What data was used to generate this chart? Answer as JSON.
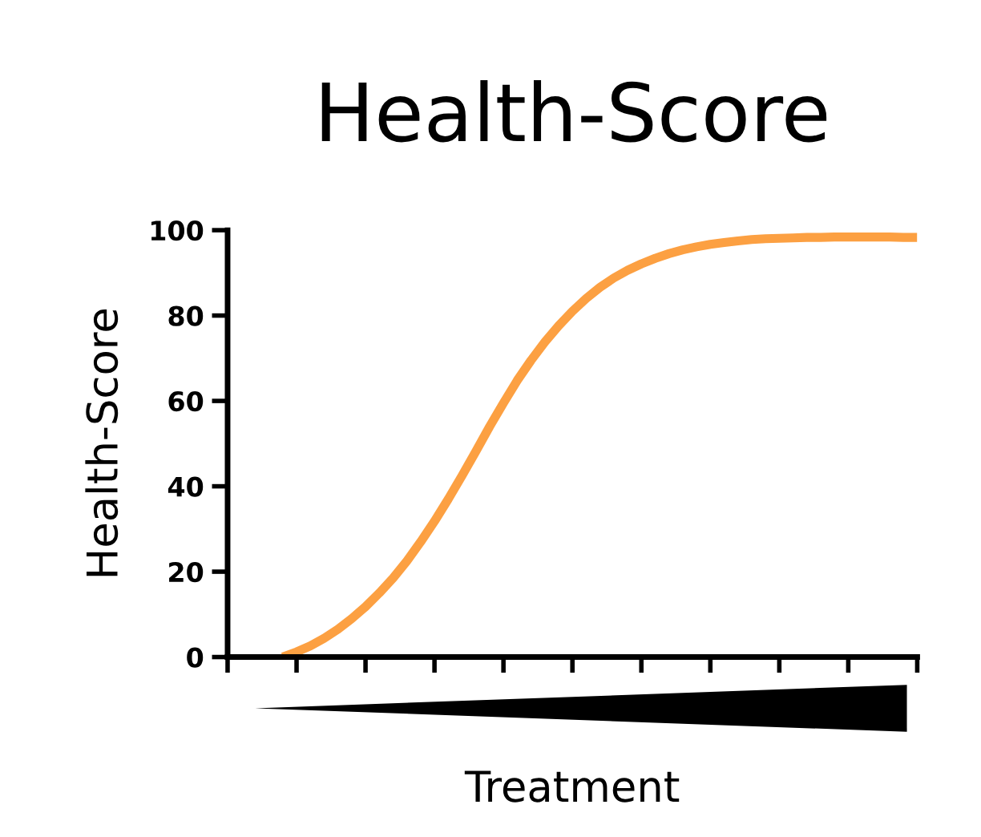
{
  "chart_data": {
    "type": "line",
    "title": "Health-Score",
    "xlabel": "Treatment",
    "ylabel": "Health-Score",
    "categories": [
      null,
      null,
      null,
      null,
      null,
      null,
      null,
      null,
      null,
      null,
      null,
      null,
      null,
      null,
      null,
      null,
      null,
      null,
      null,
      null,
      null,
      null,
      null,
      null,
      null,
      null,
      null,
      null,
      null,
      null,
      null,
      null,
      null,
      null,
      null,
      null,
      null,
      null,
      null,
      null,
      null,
      null,
      null,
      null,
      null,
      null,
      null,
      null,
      null,
      null,
      null
    ],
    "series": [
      {
        "color": "#fca042",
        "values": [
          null,
          null,
          null,
          null,
          0,
          1.2,
          2.6,
          4.4,
          6.5,
          9.0,
          11.8,
          15.0,
          18.5,
          22.5,
          27.0,
          31.8,
          37.0,
          42.5,
          48.2,
          54.0,
          59.5,
          64.8,
          69.5,
          73.8,
          77.6,
          81.0,
          84.0,
          86.6,
          88.8,
          90.6,
          92.1,
          93.4,
          94.5,
          95.4,
          96.1,
          96.7,
          97.1,
          97.5,
          97.8,
          98.0,
          98.1,
          98.2,
          98.3,
          98.3,
          98.4,
          98.4,
          98.4,
          98.4,
          98.4,
          98.3,
          98.3
        ]
      }
    ],
    "ylim": [
      0,
      100
    ],
    "yticks": [
      0,
      20,
      40,
      60,
      80,
      100
    ],
    "tick_labels": "y",
    "grid": false,
    "legend": false,
    "marker": "none",
    "line_style": "solid"
  }
}
